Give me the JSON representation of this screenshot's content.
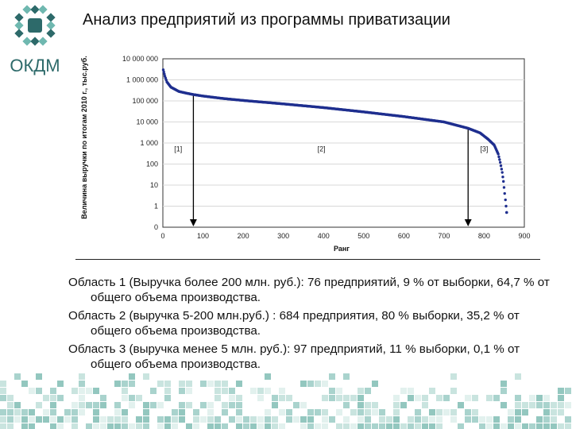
{
  "slide": {
    "title": "Анализ предприятий из программы приватизации",
    "logo_text": "ОКДМ",
    "brand_colors": {
      "dark": "#2d6a6a",
      "light": "#6fb8b0",
      "mosaic": "#a9d3cd"
    }
  },
  "notes": [
    "Область 1 (Выручка более 200 млн. руб.): 76 предприятий, 9 % от выборки, 64,7 % от общего объема производства.",
    "Область 2 (выручка 5-200 млн.руб.) : 684 предприятия, 80 % выборки, 35,2 % от общего объема производства.",
    "Область 3 (выручка менее 5 млн. руб.): 97 предприятий, 11 % выборки, 0,1 % от общего объема производства."
  ],
  "chart_data": {
    "type": "scatter",
    "title": "",
    "xlabel": "Ранг",
    "ylabel": "Величина выручки по итогам 2010 г., тыс.руб.",
    "xlim": [
      0,
      900
    ],
    "x_ticks": [
      "0",
      "100",
      "200",
      "300",
      "400",
      "500",
      "600",
      "700",
      "800",
      "900"
    ],
    "y_scale": "log",
    "ylim": [
      0,
      10000000
    ],
    "y_ticks": [
      "0",
      "1",
      "10",
      "100",
      "1 000",
      "10 000",
      "100 000",
      "1 000 000",
      "10 000 000"
    ],
    "series_color": "#1f2f8f",
    "curve_points": [
      [
        1,
        3000000
      ],
      [
        5,
        1500000
      ],
      [
        10,
        800000
      ],
      [
        20,
        450000
      ],
      [
        40,
        280000
      ],
      [
        60,
        230000
      ],
      [
        76,
        200000
      ],
      [
        100,
        170000
      ],
      [
        150,
        130000
      ],
      [
        200,
        105000
      ],
      [
        300,
        72000
      ],
      [
        400,
        48000
      ],
      [
        500,
        30000
      ],
      [
        600,
        18000
      ],
      [
        700,
        10000
      ],
      [
        760,
        5000
      ],
      [
        790,
        3000
      ],
      [
        810,
        1500
      ],
      [
        825,
        800
      ],
      [
        835,
        300
      ],
      [
        840,
        120
      ],
      [
        845,
        40
      ],
      [
        848,
        15
      ],
      [
        851,
        4
      ],
      [
        853,
        2
      ],
      [
        856,
        0.5
      ]
    ],
    "boundaries": [
      {
        "x": 76,
        "y_top": 200000
      },
      {
        "x": 760,
        "y_top": 5000
      }
    ],
    "regions": [
      {
        "label": "[1]",
        "x": 38,
        "y": 400
      },
      {
        "label": "[2]",
        "x": 395,
        "y": 400
      },
      {
        "label": "[3]",
        "x": 800,
        "y": 400
      }
    ]
  }
}
